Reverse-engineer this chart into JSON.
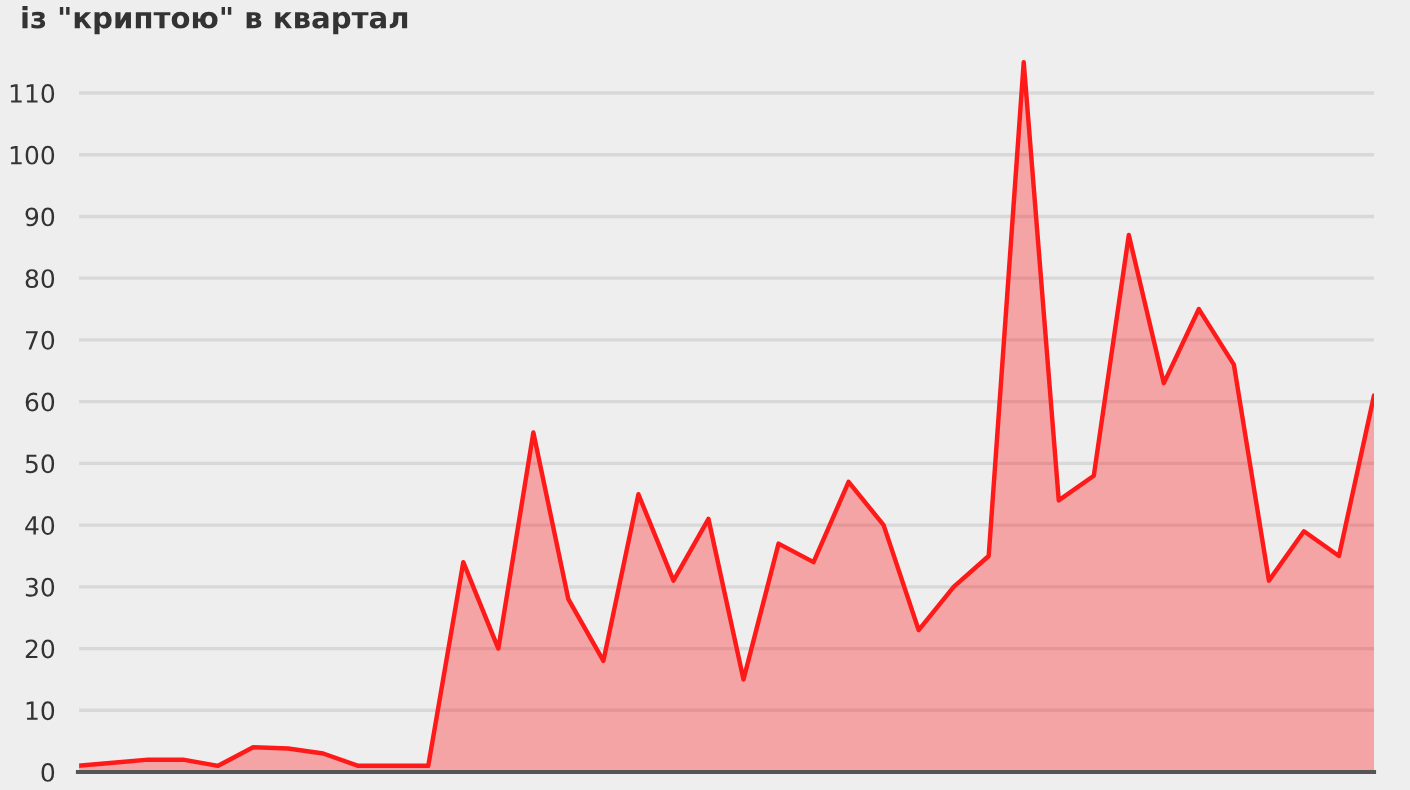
{
  "chart_data": {
    "type": "area",
    "title": "із \"криптою\" в квартал",
    "categories": [
      null,
      null,
      null,
      null,
      null,
      null,
      null,
      null,
      null,
      null,
      null,
      null,
      null,
      null,
      null,
      null,
      null,
      null,
      null,
      null,
      null,
      null,
      null,
      null,
      null,
      null,
      null,
      null,
      null,
      null,
      null,
      null,
      null,
      null,
      null,
      null,
      null,
      null
    ],
    "series": [
      {
        "color": "#ff1a1a",
        "values": [
          1,
          1.5,
          2,
          2,
          1,
          4,
          3.8,
          3,
          1,
          1,
          1,
          34,
          20,
          55,
          28,
          18,
          45,
          31,
          41,
          15,
          37,
          34,
          47,
          40,
          23,
          30,
          35,
          115,
          44,
          48,
          87,
          63,
          75,
          66,
          31,
          39,
          35,
          61
        ]
      }
    ],
    "ylim": [
      0,
      116
    ],
    "yticks": [
      0,
      10,
      20,
      30,
      40,
      50,
      60,
      70,
      80,
      90,
      100,
      110
    ],
    "grid": "y",
    "tick_labels": "y"
  }
}
